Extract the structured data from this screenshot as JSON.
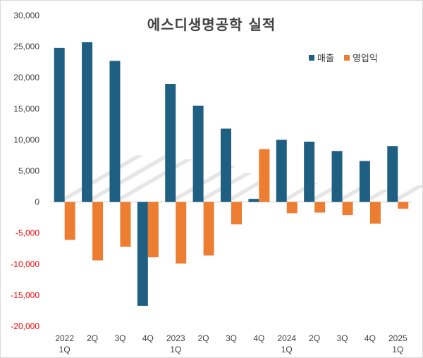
{
  "chart_data": {
    "type": "bar",
    "title": "에스디생명공학 실적",
    "categories": [
      "2022\n1Q",
      "2Q",
      "3Q",
      "4Q",
      "2023\n1Q",
      "2Q",
      "3Q",
      "4Q",
      "2024\n1Q",
      "2Q",
      "3Q",
      "4Q",
      "2025\n1Q"
    ],
    "series": [
      {
        "name": "매출",
        "color": "#1f5f82",
        "values": [
          24800,
          25700,
          22700,
          -16700,
          19000,
          15500,
          11800,
          500,
          10000,
          9700,
          8200,
          6600,
          9000
        ]
      },
      {
        "name": "영업익",
        "color": "#ed7d31",
        "values": [
          -6100,
          -9400,
          -7200,
          -8900,
          -9900,
          -8600,
          -3600,
          8500,
          -1800,
          -1700,
          -2100,
          -3500,
          -1100
        ]
      }
    ],
    "ylim": [
      -20000,
      30000
    ],
    "yticks": [
      "30,000",
      "25,000",
      "20,000",
      "15,000",
      "10,000",
      "5,000",
      "0",
      "-5,000",
      "-10,000",
      "-15,000",
      "-20,000"
    ],
    "ytick_values": [
      30000,
      25000,
      20000,
      15000,
      10000,
      5000,
      0,
      -5000,
      -10000,
      -15000,
      -20000
    ],
    "legend_position": "top-right",
    "grid": false,
    "negative_tick_color": "#ff0000"
  }
}
